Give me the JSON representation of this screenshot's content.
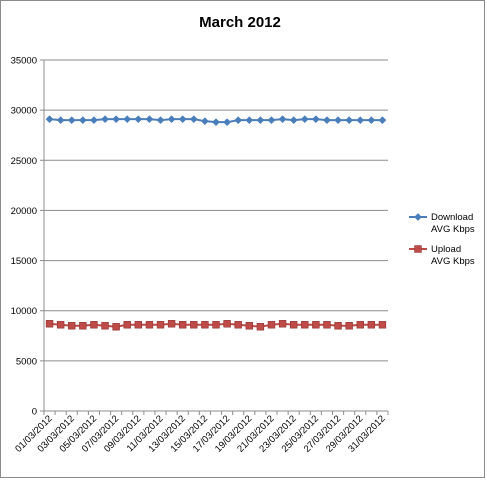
{
  "chart_data": {
    "type": "line",
    "title": "March 2012",
    "xlabel": "",
    "ylabel": "",
    "ylim": [
      0,
      35000
    ],
    "yticks": [
      0,
      5000,
      10000,
      15000,
      20000,
      25000,
      30000,
      35000
    ],
    "grid": true,
    "legend_position": "right",
    "x": [
      "01/03/2012",
      "02/03/2012",
      "03/03/2012",
      "04/03/2012",
      "05/03/2012",
      "06/03/2012",
      "07/03/2012",
      "08/03/2012",
      "09/03/2012",
      "10/03/2012",
      "11/03/2012",
      "12/03/2012",
      "13/03/2012",
      "14/03/2012",
      "15/03/2012",
      "16/03/2012",
      "17/03/2012",
      "18/03/2012",
      "19/03/2012",
      "20/03/2012",
      "21/03/2012",
      "22/03/2012",
      "23/03/2012",
      "24/03/2012",
      "25/03/2012",
      "26/03/2012",
      "27/03/2012",
      "28/03/2012",
      "29/03/2012",
      "30/03/2012",
      "31/03/2012"
    ],
    "x_tick_labels": [
      "01/03/2012",
      "03/03/2012",
      "05/03/2012",
      "07/03/2012",
      "09/03/2012",
      "11/03/2012",
      "13/03/2012",
      "15/03/2012",
      "17/03/2012",
      "19/03/2012",
      "21/03/2012",
      "23/03/2012",
      "25/03/2012",
      "27/03/2012",
      "29/03/2012",
      "31/03/2012"
    ],
    "series": [
      {
        "name": "Download AVG Kbps",
        "legend_lines": [
          "Download",
          "AVG Kbps"
        ],
        "color": "#4a7ebb",
        "marker": "diamond",
        "values": [
          29100,
          29000,
          29000,
          29000,
          29000,
          29100,
          29100,
          29100,
          29100,
          29100,
          29000,
          29100,
          29100,
          29100,
          28900,
          28800,
          28800,
          29000,
          29000,
          29000,
          29000,
          29100,
          29000,
          29100,
          29100,
          29000,
          29000,
          29000,
          29000,
          29000,
          29000
        ]
      },
      {
        "name": "Upload AVG Kbps",
        "legend_lines": [
          "Upload",
          "AVG Kbps"
        ],
        "color": "#be4b48",
        "marker": "square",
        "values": [
          8700,
          8600,
          8500,
          8500,
          8600,
          8500,
          8400,
          8600,
          8600,
          8600,
          8600,
          8700,
          8600,
          8600,
          8600,
          8600,
          8700,
          8600,
          8500,
          8400,
          8600,
          8700,
          8600,
          8600,
          8600,
          8600,
          8500,
          8500,
          8600,
          8600,
          8600
        ]
      }
    ]
  }
}
